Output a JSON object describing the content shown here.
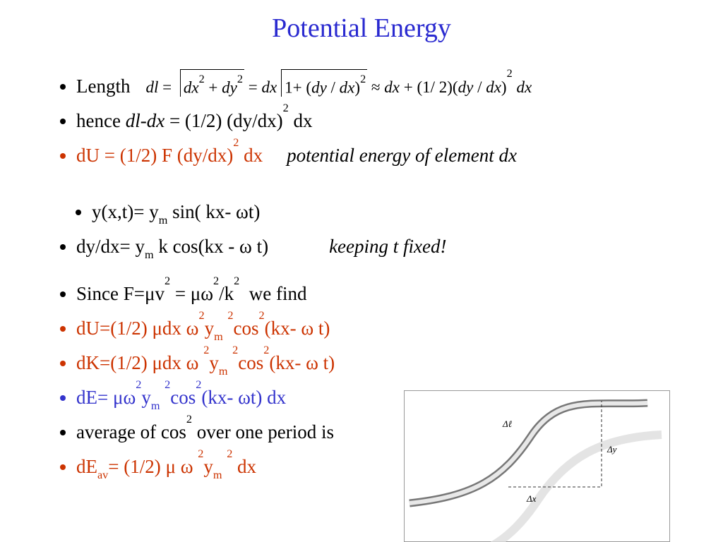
{
  "title": "Potential Energy",
  "bullets": [
    {
      "color": "#000000",
      "runs": [
        {
          "t": "Length"
        },
        {
          "t": "dl",
          "s": "fi gap"
        },
        {
          "t": " = ",
          "s": "f"
        },
        {
          "sqrt": [
            {
              "t": "dx",
              "s": "fi"
            },
            {
              "t": "2",
              "s": "f sup"
            },
            {
              "t": " + ",
              "s": "f"
            },
            {
              "t": "dy",
              "s": "fi"
            },
            {
              "t": "2",
              "s": "f sup"
            }
          ]
        },
        {
          "t": " = ",
          "s": "f"
        },
        {
          "t": "dx",
          "s": "fi"
        },
        {
          "sqrt": [
            {
              "t": "1+ (",
              "s": "f"
            },
            {
              "t": "dy",
              "s": "fi"
            },
            {
              "t": " / ",
              "s": "f"
            },
            {
              "t": "dx",
              "s": "fi"
            },
            {
              "t": ")",
              "s": "f"
            },
            {
              "t": "2",
              "s": "f sup"
            }
          ]
        },
        {
          "t": " ≈ ",
          "s": "f"
        },
        {
          "t": "dx",
          "s": "fi"
        },
        {
          "t": " + (1/ 2)(",
          "s": "f"
        },
        {
          "t": "dy",
          "s": "fi"
        },
        {
          "t": " / ",
          "s": "f"
        },
        {
          "t": "dx",
          "s": "fi"
        },
        {
          "t": ")",
          "s": "f"
        },
        {
          "t": "2",
          "s": "f sup"
        },
        {
          "t": " dx",
          "s": "fi"
        }
      ]
    },
    {
      "color": "#000000",
      "runs": [
        {
          "t": "hence "
        },
        {
          "t": "dl-dx",
          "s": "i"
        },
        {
          "t": " = (1/2) (dy/dx)"
        },
        {
          "t": "2",
          "s": "sup"
        },
        {
          "t": " dx"
        }
      ]
    },
    {
      "color": "#cc3300",
      "runs": [
        {
          "t": "dU = (1/2) F (dy/dx)"
        },
        {
          "t": "2",
          "s": "sup"
        },
        {
          "t": " dx"
        },
        {
          "t": "potential energy of element dx",
          "s": "i tab1 black"
        }
      ]
    },
    {
      "color": "#000000",
      "gap": true,
      "runs": [
        {
          "t": "y(x,t)= y"
        },
        {
          "t": "m",
          "s": "sub"
        },
        {
          "t": " sin( kx- ωt)"
        }
      ]
    },
    {
      "color": "#000000",
      "runs": [
        {
          "t": "dy/dx= y"
        },
        {
          "t": "m",
          "s": "sub"
        },
        {
          "t": " k cos(kx - ω t)"
        },
        {
          "t": "keeping t fixed!",
          "s": "i tab2"
        }
      ]
    },
    {
      "color": "#000000",
      "runs": [
        {
          "t": "Since F=μv"
        },
        {
          "t": "2",
          "s": "sup"
        },
        {
          "t": " = μω"
        },
        {
          "t": "2",
          "s": "sup"
        },
        {
          "t": "/k"
        },
        {
          "t": "2",
          "s": "sup"
        },
        {
          "t": "  we find"
        }
      ]
    },
    {
      "color": "#cc3300",
      "runs": [
        {
          "t": "dU=(1/2) μdx ω"
        },
        {
          "t": "2",
          "s": "sup"
        },
        {
          "t": "y"
        },
        {
          "t": "m",
          "s": "sub"
        },
        {
          "t": " "
        },
        {
          "t": "2",
          "s": "sup"
        },
        {
          "t": "cos"
        },
        {
          "t": "2",
          "s": "sup"
        },
        {
          "t": "(kx- ω t)"
        }
      ]
    },
    {
      "color": "#cc3300",
      "runs": [
        {
          "t": "dK=(1/2) μdx ω "
        },
        {
          "t": "2",
          "s": "sup"
        },
        {
          "t": "y"
        },
        {
          "t": "m",
          "s": "sub"
        },
        {
          "t": " "
        },
        {
          "t": "2",
          "s": "sup"
        },
        {
          "t": "cos"
        },
        {
          "t": "2",
          "s": "sup"
        },
        {
          "t": "(kx- ω t)"
        }
      ]
    },
    {
      "color": "#3333cc",
      "runs": [
        {
          "t": "dE= μω"
        },
        {
          "t": "2",
          "s": "sup"
        },
        {
          "t": "y"
        },
        {
          "t": "m",
          "s": "sub"
        },
        {
          "t": " "
        },
        {
          "t": "2",
          "s": "sup"
        },
        {
          "t": "cos"
        },
        {
          "t": "2",
          "s": "sup"
        },
        {
          "t": "(kx- ωt) dx"
        }
      ]
    },
    {
      "color": "#000000",
      "runs": [
        {
          "t": "average of cos"
        },
        {
          "t": "2",
          "s": "sup"
        },
        {
          "t": " over one period is"
        }
      ]
    },
    {
      "color": "#cc3300",
      "runs": [
        {
          "t": "dE"
        },
        {
          "t": "av",
          "s": "sub"
        },
        {
          "t": "= (1/2) μ ω "
        },
        {
          "t": "2",
          "s": "sup"
        },
        {
          "t": "y"
        },
        {
          "t": "m",
          "s": "sub"
        },
        {
          "t": " "
        },
        {
          "t": "2",
          "s": "sup"
        },
        {
          "t": " dx"
        }
      ]
    }
  ],
  "figure": {
    "labels": [
      "Δℓ",
      "Δy",
      "Δx"
    ]
  }
}
